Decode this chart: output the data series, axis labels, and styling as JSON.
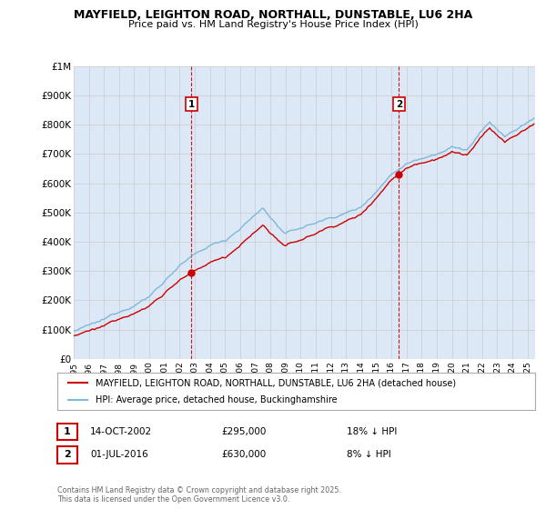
{
  "title1": "MAYFIELD, LEIGHTON ROAD, NORTHALL, DUNSTABLE, LU6 2HA",
  "title2": "Price paid vs. HM Land Registry's House Price Index (HPI)",
  "ylabel_ticks": [
    "£0",
    "£100K",
    "£200K",
    "£300K",
    "£400K",
    "£500K",
    "£600K",
    "£700K",
    "£800K",
    "£900K",
    "£1M"
  ],
  "ytick_vals": [
    0,
    100000,
    200000,
    300000,
    400000,
    500000,
    600000,
    700000,
    800000,
    900000,
    1000000
  ],
  "hpi_color": "#7eb8d9",
  "price_color": "#cc0000",
  "ann1_x": 2002.79,
  "ann1_price": 295000,
  "ann1_label": "1",
  "ann1_date": "14-OCT-2002",
  "ann1_price_str": "£295,000",
  "ann1_note": "18% ↓ HPI",
  "ann2_x": 2016.5,
  "ann2_price": 630000,
  "ann2_label": "2",
  "ann2_date": "01-JUL-2016",
  "ann2_price_str": "£630,000",
  "ann2_note": "8% ↓ HPI",
  "legend_line1": "MAYFIELD, LEIGHTON ROAD, NORTHALL, DUNSTABLE, LU6 2HA (detached house)",
  "legend_line2": "HPI: Average price, detached house, Buckinghamshire",
  "footer": "Contains HM Land Registry data © Crown copyright and database right 2025.\nThis data is licensed under the Open Government Licence v3.0.",
  "xmin": 1995.0,
  "xmax": 2025.5,
  "ymin": 0,
  "ymax": 1000000,
  "bg_color": "#dce8f5",
  "plot_bg": "white",
  "grid_color": "#cccccc"
}
